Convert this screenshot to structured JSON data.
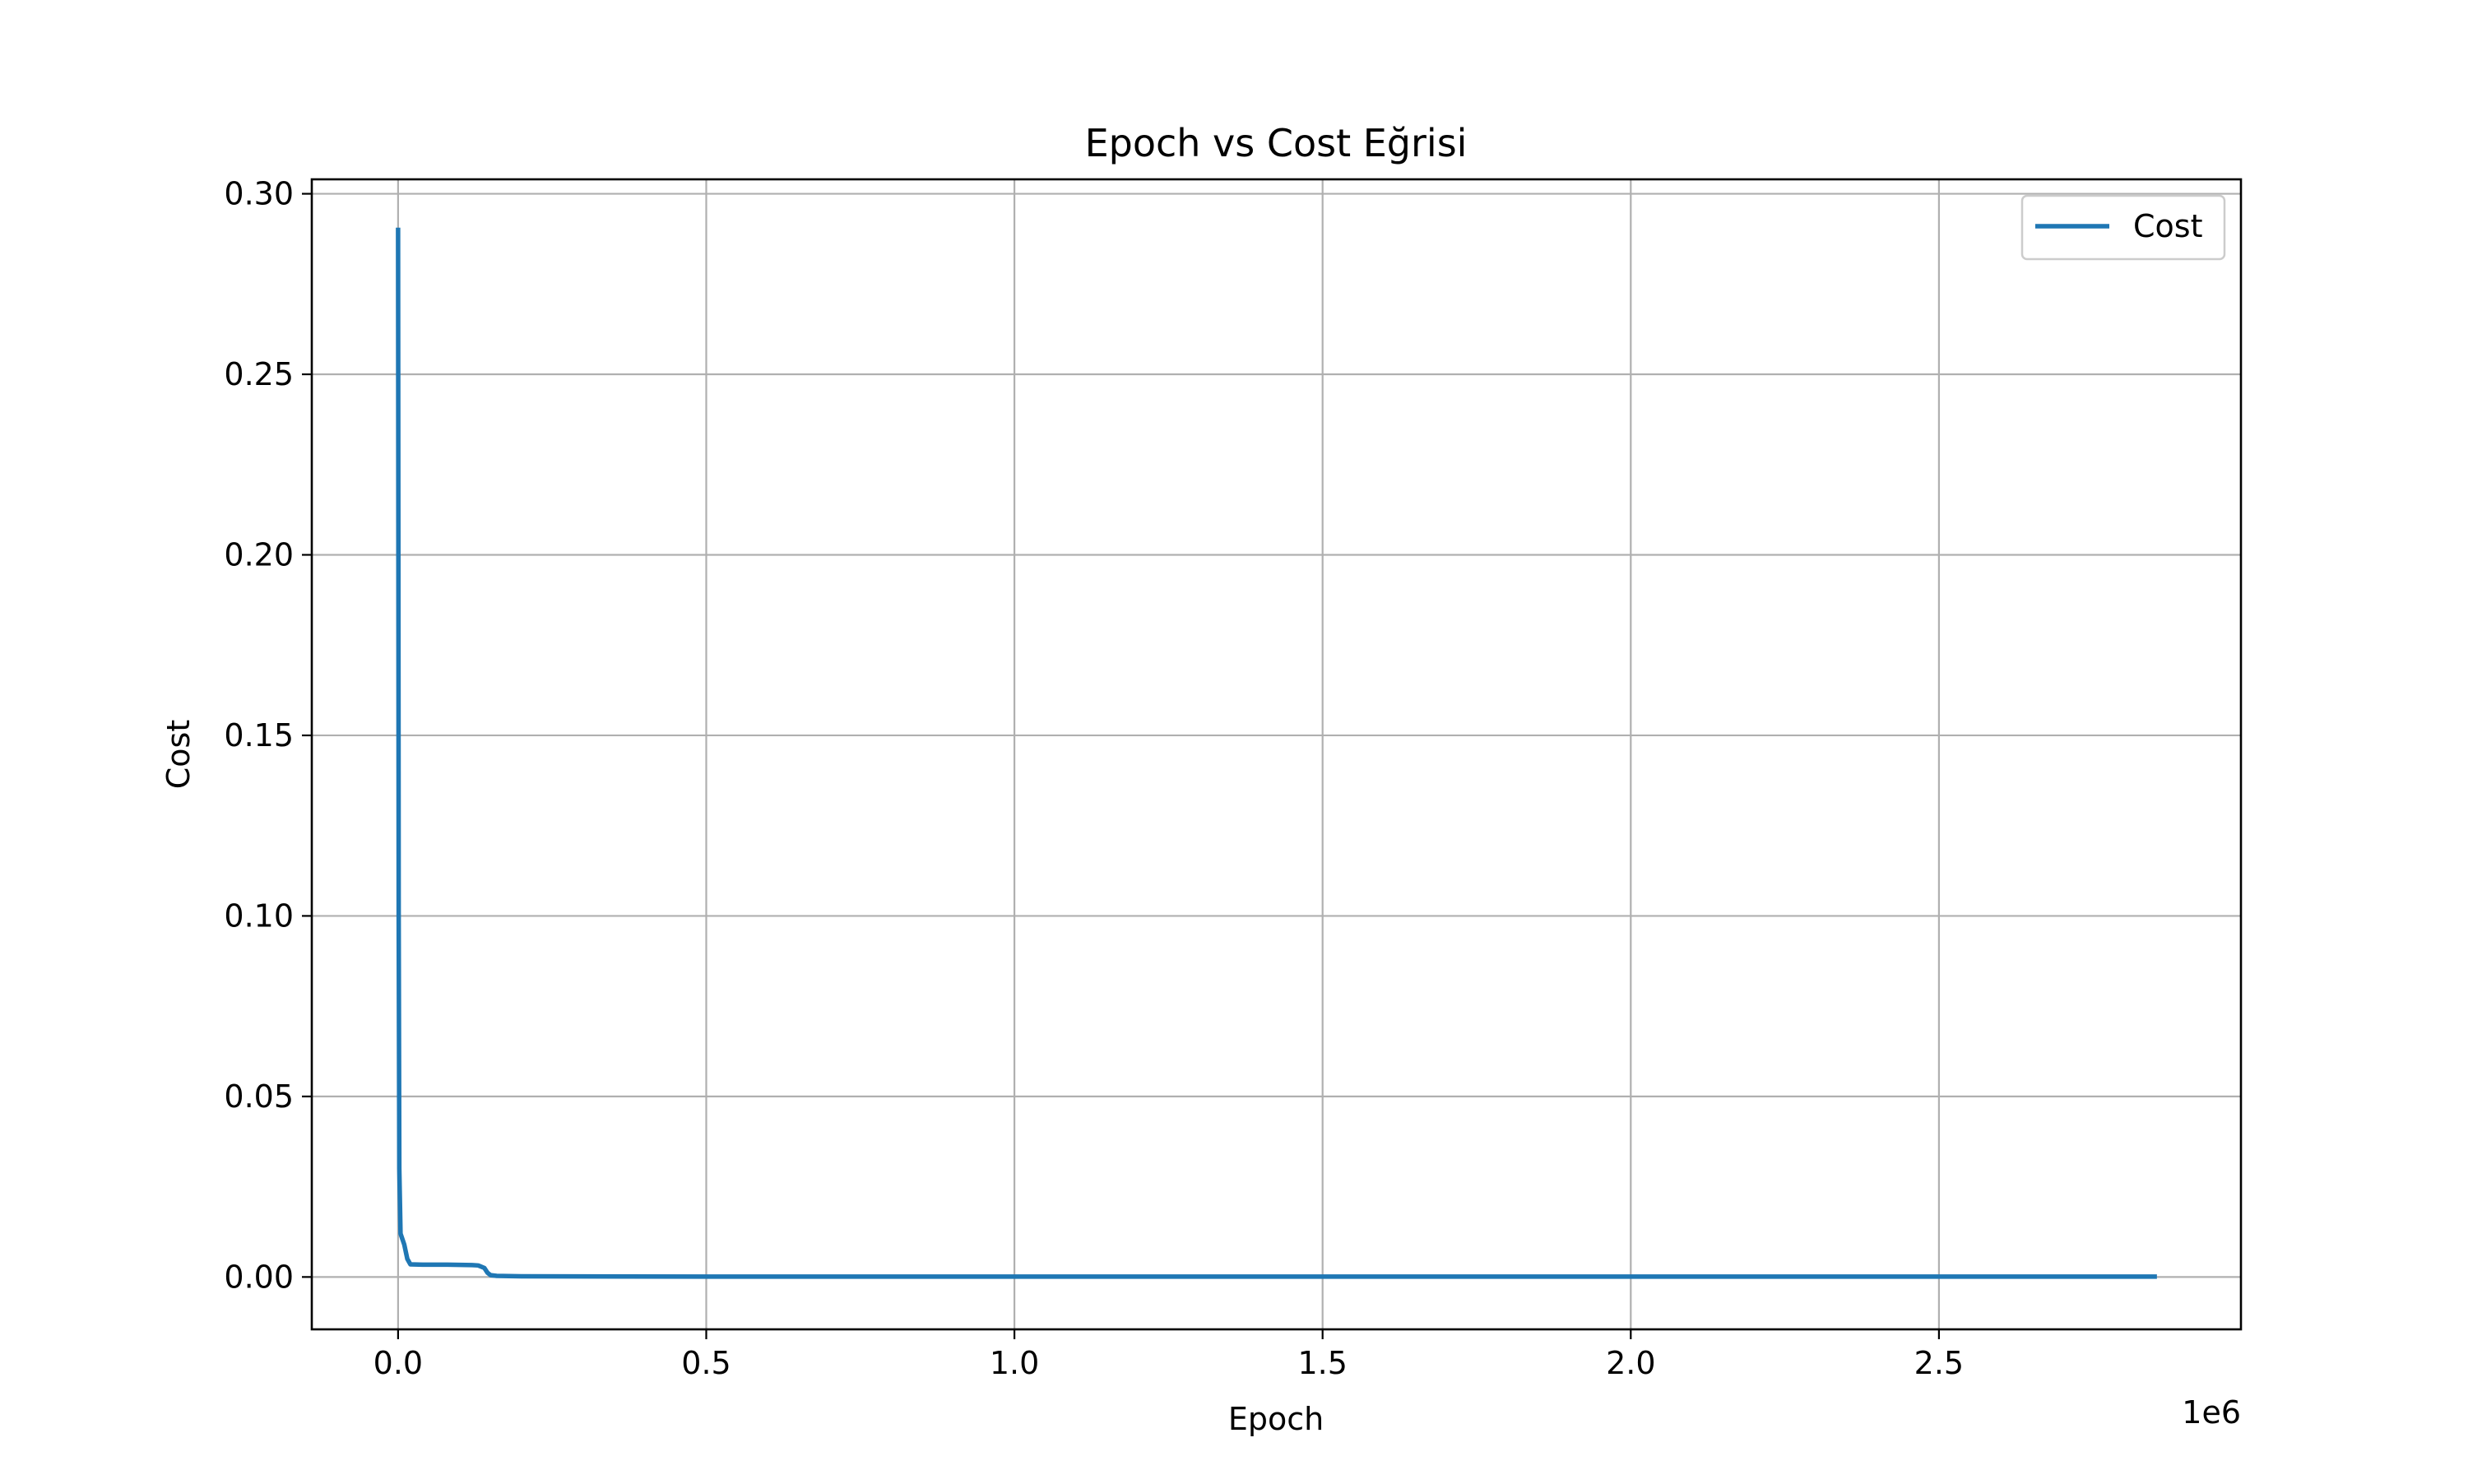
{
  "chart_data": {
    "type": "line",
    "title": "Epoch vs Cost Eğrisi",
    "xlabel": "Epoch",
    "ylabel": "Cost",
    "x_offset_label": "1e6",
    "xlim": [
      -140000,
      2990000
    ],
    "ylim": [
      -0.0145,
      0.304
    ],
    "x_ticks": [
      0,
      500000,
      1000000,
      1500000,
      2000000,
      2500000
    ],
    "x_tick_labels": [
      "0.0",
      "0.5",
      "1.0",
      "1.5",
      "2.0",
      "2.5"
    ],
    "y_ticks": [
      0.0,
      0.05,
      0.1,
      0.15,
      0.2,
      0.25,
      0.3
    ],
    "y_tick_labels": [
      "0.00",
      "0.05",
      "0.10",
      "0.15",
      "0.20",
      "0.25",
      "0.30"
    ],
    "grid": true,
    "legend_position": "top-right",
    "series": [
      {
        "name": "Cost",
        "color": "#1f77b4",
        "x": [
          0,
          500,
          1000,
          2000,
          4000,
          6000,
          10000,
          15000,
          20000,
          40000,
          80000,
          120000,
          130000,
          140000,
          145000,
          150000,
          160000,
          200000,
          500000,
          1000000,
          1500000,
          2000000,
          2500000,
          2850000
        ],
        "y": [
          0.29,
          0.2,
          0.1,
          0.03,
          0.012,
          0.011,
          0.009,
          0.005,
          0.0035,
          0.0034,
          0.0034,
          0.0033,
          0.0032,
          0.0025,
          0.0012,
          0.0005,
          0.0003,
          0.0002,
          0.0001,
          0.0001,
          0.0001,
          0.0001,
          0.0001,
          0.0001
        ]
      }
    ]
  }
}
